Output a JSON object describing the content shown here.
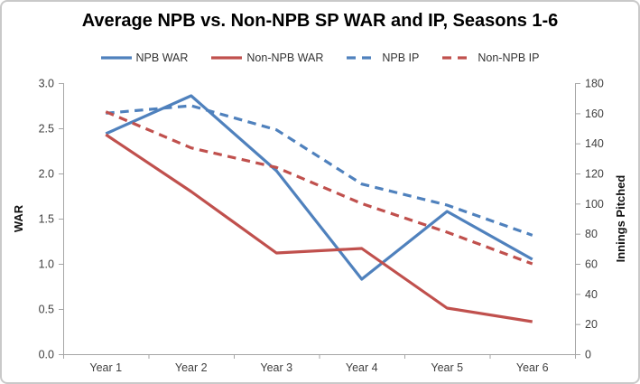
{
  "chart_data": {
    "type": "line",
    "title": "Average NPB vs. Non-NPB SP WAR and IP, Seasons 1-6",
    "categories": [
      "Year 1",
      "Year 2",
      "Year 3",
      "Year 4",
      "Year 5",
      "Year 6"
    ],
    "series": [
      {
        "name": "NPB WAR",
        "axis": "left",
        "style": "solid",
        "color": "#4F81BD",
        "values": [
          2.44,
          2.86,
          2.03,
          0.83,
          1.58,
          1.05
        ]
      },
      {
        "name": "Non-NPB WAR",
        "axis": "left",
        "style": "solid",
        "color": "#C0504D",
        "values": [
          2.43,
          1.8,
          1.12,
          1.17,
          0.51,
          0.36
        ]
      },
      {
        "name": "NPB IP",
        "axis": "right",
        "style": "dashed",
        "color": "#4F81BD",
        "values": [
          160,
          165,
          149,
          113,
          99,
          79
        ]
      },
      {
        "name": "Non-NPB IP",
        "axis": "right",
        "style": "dashed",
        "color": "#C0504D",
        "values": [
          161,
          137,
          124,
          100,
          81,
          60
        ]
      }
    ],
    "left_axis": {
      "label": "WAR",
      "min": 0,
      "max": 3,
      "step": 0.5,
      "tick_labels": [
        "0.0",
        "0.5",
        "1.0",
        "1.5",
        "2.0",
        "2.5",
        "3.0"
      ]
    },
    "right_axis": {
      "label": "Innings Pitched",
      "min": 0,
      "max": 180,
      "step": 20,
      "tick_labels": [
        "0",
        "20",
        "40",
        "60",
        "80",
        "100",
        "120",
        "140",
        "160",
        "180"
      ]
    },
    "legend_position": "top",
    "grid": false,
    "axis_color": "#a6a6a6",
    "tick_text_color": "#3f3f3f"
  }
}
